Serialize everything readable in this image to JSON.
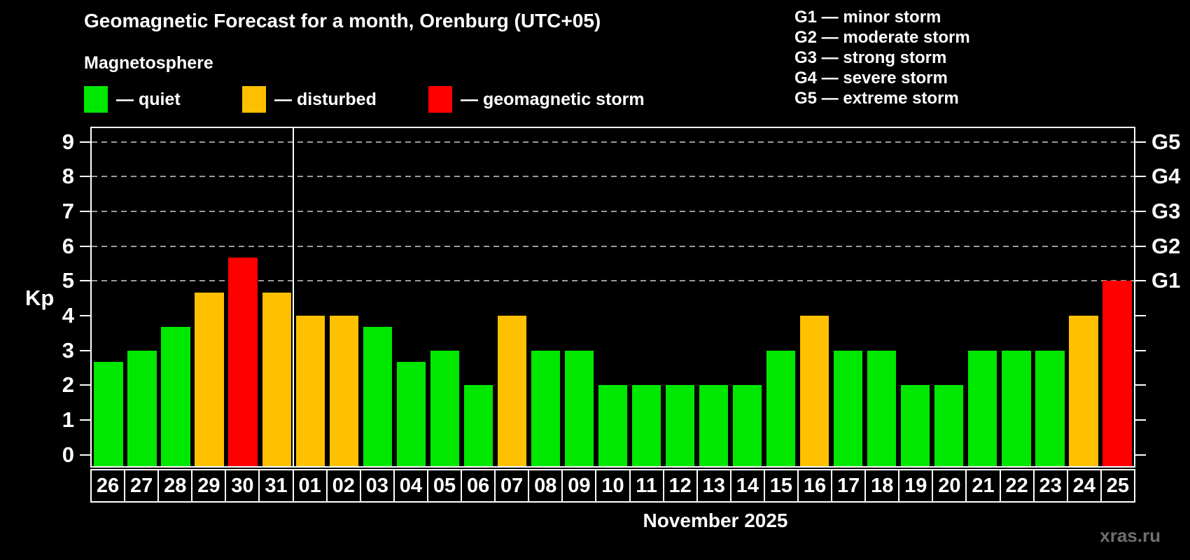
{
  "header": {
    "title": "Geomagnetic Forecast for a month, Orenburg (UTC+05)",
    "subtitle": "Magnetosphere"
  },
  "storm_scale": {
    "items": [
      "G1 — minor storm",
      "G2 — moderate storm",
      "G3 — strong storm",
      "G4 — severe storm",
      "G5 — extreme storm"
    ]
  },
  "legend": {
    "items": [
      {
        "label": "— quiet",
        "status": "quiet"
      },
      {
        "label": "— disturbed",
        "status": "disturbed"
      },
      {
        "label": "— geomagnetic storm",
        "status": "storm"
      }
    ]
  },
  "chart_data": {
    "type": "bar",
    "title": "Geomagnetic Forecast for a month, Orenburg (UTC+05)",
    "subtitle": "Magnetosphere",
    "xlabel": "November 2025",
    "ylabel": "Kp",
    "ylim": [
      -0.33,
      9.4
    ],
    "yticks": [
      0,
      1,
      2,
      3,
      4,
      5,
      6,
      7,
      8,
      9
    ],
    "gridlines": [
      5,
      6,
      7,
      8,
      9
    ],
    "grid": "dashed horizontal lines at Kp 5-9 only",
    "legend_position": "top-left",
    "right_axis_labels": [
      {
        "label": "G1",
        "value": 5
      },
      {
        "label": "G2",
        "value": 6
      },
      {
        "label": "G3",
        "value": 7
      },
      {
        "label": "G4",
        "value": 8
      },
      {
        "label": "G5",
        "value": 9
      }
    ],
    "categories": [
      "26",
      "27",
      "28",
      "29",
      "30",
      "31",
      "01",
      "02",
      "03",
      "04",
      "05",
      "06",
      "07",
      "08",
      "09",
      "10",
      "11",
      "12",
      "13",
      "14",
      "15",
      "16",
      "17",
      "18",
      "19",
      "20",
      "21",
      "22",
      "23",
      "24",
      "25"
    ],
    "values": [
      2.67,
      3,
      3.67,
      4.67,
      5.67,
      4.67,
      4,
      4,
      3.67,
      2.67,
      3,
      2,
      4,
      3,
      3,
      2,
      2,
      2,
      2,
      2,
      3,
      4,
      3,
      3,
      2,
      2,
      3,
      3,
      3,
      4,
      5
    ],
    "statuses": [
      "quiet",
      "quiet",
      "quiet",
      "disturbed",
      "storm",
      "disturbed",
      "disturbed",
      "disturbed",
      "quiet",
      "quiet",
      "quiet",
      "quiet",
      "disturbed",
      "quiet",
      "quiet",
      "quiet",
      "quiet",
      "quiet",
      "quiet",
      "quiet",
      "quiet",
      "disturbed",
      "quiet",
      "quiet",
      "quiet",
      "quiet",
      "quiet",
      "quiet",
      "quiet",
      "disturbed",
      "storm"
    ],
    "month_separator_index": 6,
    "colors": {
      "quiet": "#00e800",
      "disturbed": "#ffc000",
      "storm": "#ff0000",
      "axis": "#ffffff",
      "gridline": "#9b9b9b",
      "background": "#000000",
      "watermark": "#6f6f6f"
    }
  },
  "footer": {
    "watermark": "xras.ru"
  }
}
